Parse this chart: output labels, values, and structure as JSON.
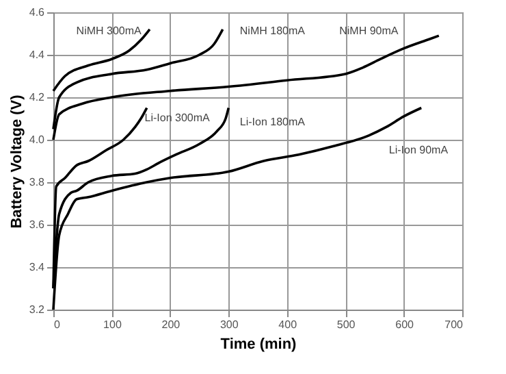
{
  "chart_data": {
    "type": "line",
    "xlabel": "Time (min)",
    "ylabel": "Battery Voltage (V)",
    "xlim": [
      0,
      700
    ],
    "xticks": [
      0,
      100,
      200,
      300,
      400,
      500,
      600,
      700
    ],
    "ylim": [
      3.2,
      4.6
    ],
    "yticks": [
      3.2,
      3.4,
      3.6,
      3.8,
      {
        "value": 4,
        "label": "4.0"
      },
      4.2,
      4.4,
      4.6
    ],
    "grid": true,
    "marker": "none",
    "line_style": "solid",
    "series": [
      {
        "name": "NiMH 300mA",
        "color": "#000000",
        "x": [
          0,
          20,
          60,
          100,
          130,
          150,
          165
        ],
        "values": [
          4.23,
          4.3,
          4.35,
          4.38,
          4.42,
          4.47,
          4.52
        ]
      },
      {
        "name": "NiMH 180mA",
        "color": "#000000",
        "x": [
          0,
          10,
          40,
          100,
          160,
          200,
          250,
          275,
          290
        ],
        "values": [
          4.05,
          4.2,
          4.27,
          4.31,
          4.33,
          4.36,
          4.4,
          4.45,
          4.52
        ]
      },
      {
        "name": "NiMH 90mA",
        "color": "#000000",
        "x": [
          0,
          10,
          50,
          100,
          200,
          300,
          400,
          500,
          530,
          560,
          600,
          640,
          660
        ],
        "values": [
          4.0,
          4.12,
          4.17,
          4.2,
          4.23,
          4.25,
          4.28,
          4.31,
          4.34,
          4.38,
          4.43,
          4.47,
          4.49
        ]
      },
      {
        "name": "Li-Ion 300mA",
        "color": "#000000",
        "x": [
          0,
          5,
          20,
          40,
          60,
          90,
          120,
          140,
          150,
          160
        ],
        "values": [
          3.3,
          3.78,
          3.82,
          3.88,
          3.9,
          3.95,
          4.0,
          4.06,
          4.1,
          4.15
        ]
      },
      {
        "name": "Li-Ion 180mA",
        "color": "#000000",
        "x": [
          0,
          10,
          30,
          40,
          60,
          100,
          140,
          160,
          180,
          210,
          250,
          280,
          295,
          300
        ],
        "values": [
          3.3,
          3.65,
          3.75,
          3.76,
          3.8,
          3.83,
          3.84,
          3.86,
          3.89,
          3.93,
          3.98,
          4.04,
          4.1,
          4.15
        ]
      },
      {
        "name": "Li-Ion 90mA",
        "color": "#000000",
        "x": [
          0,
          10,
          25,
          40,
          60,
          100,
          160,
          200,
          300,
          360,
          420,
          480,
          540,
          570,
          600,
          630
        ],
        "values": [
          3.2,
          3.55,
          3.65,
          3.72,
          3.73,
          3.76,
          3.8,
          3.82,
          3.85,
          3.9,
          3.93,
          3.97,
          4.02,
          4.06,
          4.11,
          4.15
        ]
      }
    ]
  }
}
